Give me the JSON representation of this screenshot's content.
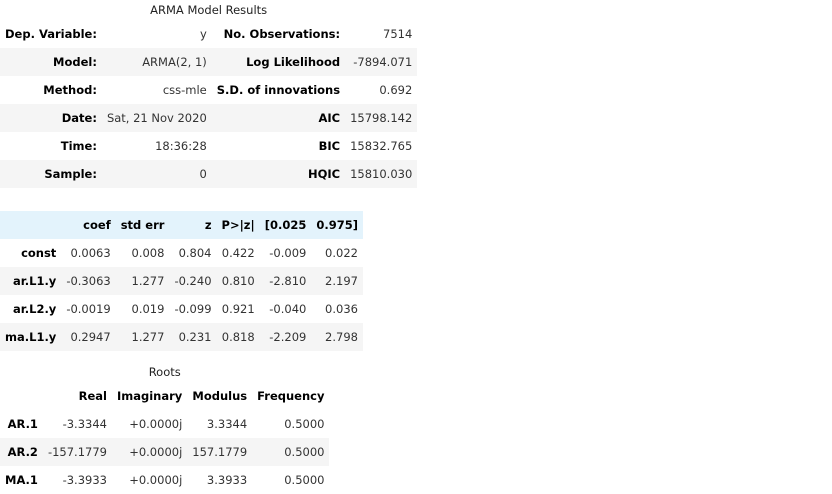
{
  "summary": {
    "caption": "ARMA Model Results",
    "rows": [
      {
        "l1": "Dep. Variable:",
        "v1": "y",
        "l2": "No. Observations:",
        "v2": "7514"
      },
      {
        "l1": "Model:",
        "v1": "ARMA(2, 1)",
        "l2": "Log Likelihood",
        "v2": "-7894.071"
      },
      {
        "l1": "Method:",
        "v1": "css-mle",
        "l2": "S.D. of innovations",
        "v2": "0.692"
      },
      {
        "l1": "Date:",
        "v1": "Sat, 21 Nov 2020",
        "l2": "AIC",
        "v2": "15798.142"
      },
      {
        "l1": "Time:",
        "v1": "18:36:28",
        "l2": "BIC",
        "v2": "15832.765"
      },
      {
        "l1": "Sample:",
        "v1": "0",
        "l2": "HQIC",
        "v2": "15810.030"
      }
    ]
  },
  "coef": {
    "headers": [
      "",
      "coef",
      "std err",
      "z",
      "P>|z|",
      "[0.025",
      "0.975]"
    ],
    "rows": [
      {
        "name": "const",
        "vals": [
          "0.0063",
          "0.008",
          "0.804",
          "0.422",
          "-0.009",
          "0.022"
        ]
      },
      {
        "name": "ar.L1.y",
        "vals": [
          "-0.3063",
          "1.277",
          "-0.240",
          "0.810",
          "-2.810",
          "2.197"
        ]
      },
      {
        "name": "ar.L2.y",
        "vals": [
          "-0.0019",
          "0.019",
          "-0.099",
          "0.921",
          "-0.040",
          "0.036"
        ]
      },
      {
        "name": "ma.L1.y",
        "vals": [
          "0.2947",
          "1.277",
          "0.231",
          "0.818",
          "-2.209",
          "2.798"
        ]
      }
    ]
  },
  "roots": {
    "caption": "Roots",
    "headers": [
      "",
      "Real",
      "Imaginary",
      "Modulus",
      "Frequency"
    ],
    "rows": [
      {
        "name": "AR.1",
        "vals": [
          "-3.3344",
          "+0.0000j",
          "3.3344",
          "0.5000"
        ]
      },
      {
        "name": "AR.2",
        "vals": [
          "-157.1779",
          "+0.0000j",
          "157.1779",
          "0.5000"
        ]
      },
      {
        "name": "MA.1",
        "vals": [
          "-3.3933",
          "+0.0000j",
          "3.3933",
          "0.5000"
        ]
      }
    ]
  }
}
